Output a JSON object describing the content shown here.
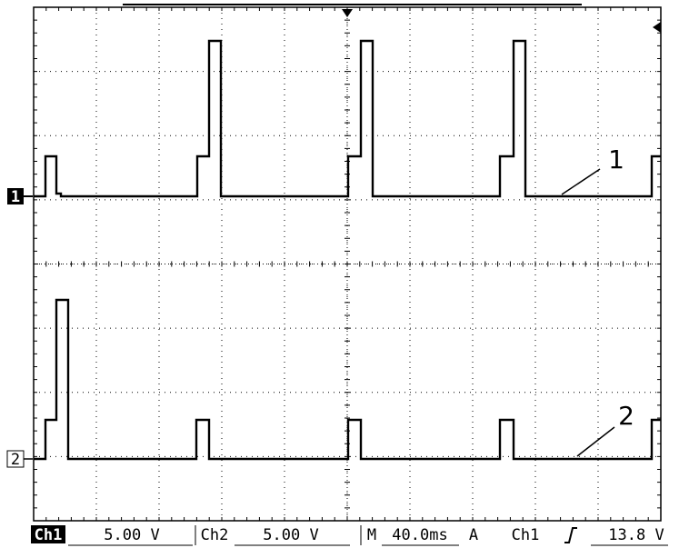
{
  "channel_markers": [
    "1",
    "2"
  ],
  "annotations": [
    "1",
    "2"
  ],
  "status_bar": {
    "ch1_label": "Ch1",
    "ch1_scale": "5.00 V",
    "ch2_label": "Ch2",
    "ch2_scale": "5.00 V",
    "timebase_prefix": "M",
    "timebase": "40.0ms",
    "trigger_mode": "A",
    "trigger_source": "Ch1",
    "trigger_level": "13.8 V"
  }
}
